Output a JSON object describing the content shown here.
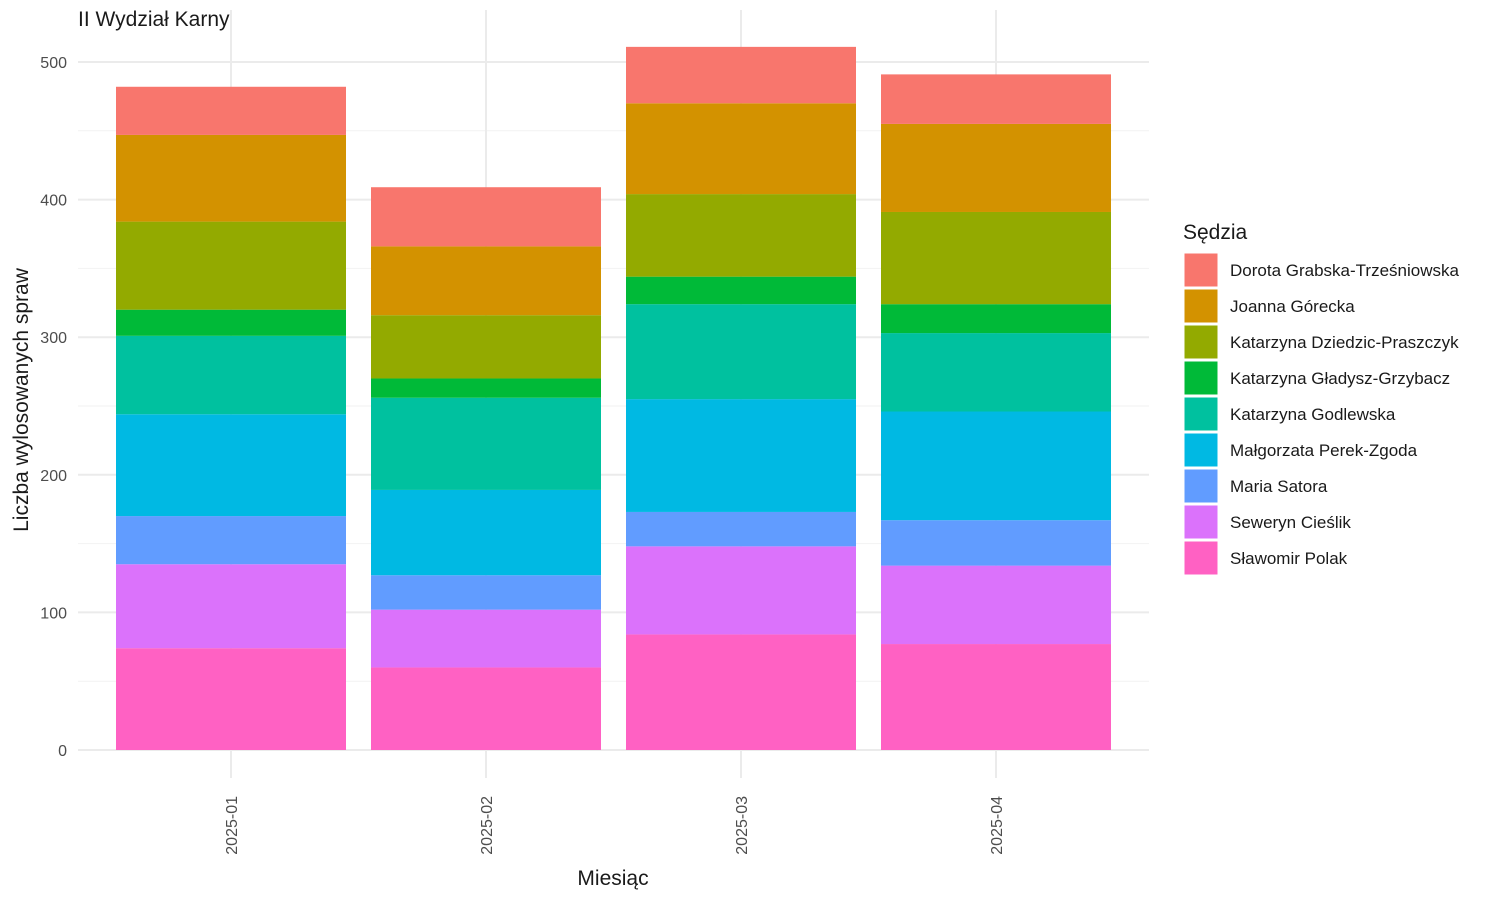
{
  "chart_data": {
    "type": "bar",
    "stacked": true,
    "title": "II Wydział Karny",
    "xlabel": "Miesiąc",
    "ylabel": "Liczba wylosowanych spraw",
    "ylim": [
      0,
      520
    ],
    "y_ticks": [
      0,
      100,
      200,
      300,
      400,
      500
    ],
    "grid": true,
    "legend_title": "Sędzia",
    "legend_position": "right",
    "categories": [
      "2025-01",
      "2025-02",
      "2025-03",
      "2025-04"
    ],
    "series": [
      {
        "name": "Sławomir Polak",
        "color": "#FF61C3",
        "values": [
          74,
          60,
          84,
          77
        ]
      },
      {
        "name": "Seweryn Cieślik",
        "color": "#DB72FB",
        "values": [
          61,
          42,
          64,
          57
        ]
      },
      {
        "name": "Maria Satora",
        "color": "#619CFF",
        "values": [
          35,
          25,
          25,
          33
        ]
      },
      {
        "name": "Małgorzata Perek-Zgoda",
        "color": "#00B9E3",
        "values": [
          74,
          62,
          82,
          79
        ]
      },
      {
        "name": "Katarzyna Godlewska",
        "color": "#00C19F",
        "values": [
          57,
          67,
          69,
          57
        ]
      },
      {
        "name": "Katarzyna Gładysz-Grzybacz",
        "color": "#00BA38",
        "values": [
          19,
          14,
          20,
          21
        ]
      },
      {
        "name": "Katarzyna Dziedzic-Praszczyk",
        "color": "#93AA00",
        "values": [
          64,
          46,
          60,
          67
        ]
      },
      {
        "name": "Joanna Górecka",
        "color": "#D39200",
        "values": [
          63,
          50,
          66,
          64
        ]
      },
      {
        "name": "Dorota Grabska-Trześniowska",
        "color": "#F8766D",
        "values": [
          35,
          43,
          41,
          36
        ]
      }
    ]
  }
}
